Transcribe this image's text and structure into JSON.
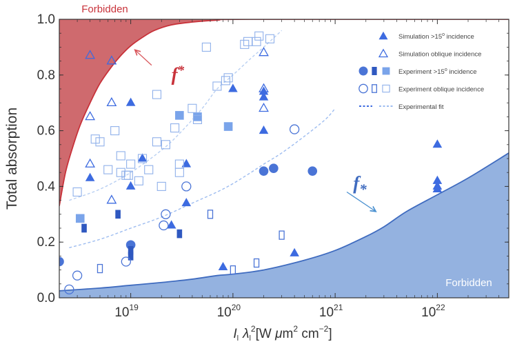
{
  "chart_data": {
    "type": "scatter",
    "title": "",
    "xlabel": "I_l λ_l^2 [W μm^2 cm^-2]",
    "xlabel_parts": {
      "I": "I",
      "sub1": "l",
      "lambda": "λ",
      "sub2": "l",
      "unit_pre": "[W ",
      "mu": "μ",
      "m": "m",
      "sup1": "2",
      "cm": " cm",
      "sup2": "−2",
      "close": "]"
    },
    "ylabel": "Total absorption",
    "xscale": "log",
    "xlim": [
      2e+18,
      5e+22
    ],
    "ylim": [
      0,
      1
    ],
    "x_ticks": [
      {
        "value": 1e+19,
        "base": "10",
        "exp": "19"
      },
      {
        "value": 1e+20,
        "base": "10",
        "exp": "20"
      },
      {
        "value": 1e+21,
        "base": "10",
        "exp": "21"
      },
      {
        "value": 1e+22,
        "base": "10",
        "exp": "22"
      }
    ],
    "y_ticks": [
      {
        "value": 0.0,
        "label": "0.0"
      },
      {
        "value": 0.2,
        "label": "0.2"
      },
      {
        "value": 0.4,
        "label": "0.4"
      },
      {
        "value": 0.6,
        "label": "0.6"
      },
      {
        "value": 0.8,
        "label": "0.8"
      },
      {
        "value": 1.0,
        "label": "1.0"
      }
    ],
    "regions": {
      "upper": {
        "label": "Forbidden",
        "color": "#cf6a6e",
        "edge_color": "#c8323a"
      },
      "lower": {
        "label": "Forbidden",
        "color": "#94b2e0",
        "edge_color": "#3f6bbf"
      }
    },
    "curves": {
      "f_upper": {
        "label": "f",
        "symbol": "*",
        "color": "#c8323a",
        "points": [
          [
            2e+18,
            0.33
          ],
          [
            2.3e+18,
            0.45
          ],
          [
            2.7e+18,
            0.54
          ],
          [
            3.2e+18,
            0.62
          ],
          [
            4e+18,
            0.7
          ],
          [
            5e+18,
            0.77
          ],
          [
            6.5e+18,
            0.83
          ],
          [
            8e+18,
            0.87
          ],
          [
            1e+19,
            0.905
          ],
          [
            1.3e+19,
            0.935
          ],
          [
            1.7e+19,
            0.96
          ],
          [
            2.5e+19,
            0.98
          ],
          [
            4e+19,
            0.99
          ],
          [
            7e+19,
            0.997
          ],
          [
            1.5e+20,
            1.0
          ],
          [
            5e+22,
            1.0
          ]
        ]
      },
      "f_lower": {
        "label": "f",
        "symbol": "*",
        "color": "#3f6bbf",
        "points": [
          [
            2e+18,
            0.025
          ],
          [
            5e+18,
            0.035
          ],
          [
            1e+19,
            0.045
          ],
          [
            2e+19,
            0.055
          ],
          [
            4e+19,
            0.067
          ],
          [
            7e+19,
            0.08
          ],
          [
            1e+20,
            0.085
          ],
          [
            2e+20,
            0.1
          ],
          [
            5e+20,
            0.135
          ],
          [
            1e+21,
            0.17
          ],
          [
            2e+21,
            0.22
          ],
          [
            3e+21,
            0.255
          ],
          [
            5e+21,
            0.31
          ],
          [
            1e+22,
            0.37
          ],
          [
            2e+22,
            0.43
          ],
          [
            5e+22,
            0.52
          ]
        ]
      },
      "fit_dark": {
        "points": [
          [
            2.5e+18,
            0.18
          ],
          [
            5e+18,
            0.21
          ],
          [
            1e+19,
            0.25
          ],
          [
            2e+19,
            0.29
          ],
          [
            4e+19,
            0.34
          ],
          [
            7e+19,
            0.38
          ],
          [
            1e+20,
            0.41
          ],
          [
            1.5e+20,
            0.45
          ],
          [
            2e+20,
            0.48
          ],
          [
            3e+20,
            0.52
          ],
          [
            5e+20,
            0.58
          ],
          [
            8e+20,
            0.64
          ],
          [
            1e+21,
            0.68
          ]
        ]
      },
      "fit_light": {
        "points": [
          [
            2.5e+18,
            0.35
          ],
          [
            5e+18,
            0.39
          ],
          [
            1e+19,
            0.45
          ],
          [
            2e+19,
            0.53
          ],
          [
            3e+19,
            0.59
          ],
          [
            5e+19,
            0.68
          ],
          [
            7e+19,
            0.75
          ],
          [
            1e+20,
            0.8
          ],
          [
            1.5e+20,
            0.86
          ],
          [
            2e+20,
            0.9
          ],
          [
            3e+20,
            0.96
          ]
        ]
      }
    },
    "annotations": {
      "f_upper_arrow": {
        "from": [
          1.6e+19,
          0.835
        ],
        "to": [
          1.1e+19,
          0.89
        ]
      },
      "f_lower_arrow": {
        "from": [
          1.3e+21,
          0.38
        ],
        "to": [
          2.5e+21,
          0.31
        ]
      },
      "f_upper_pos": [
        2.5e+19,
        0.78
      ],
      "f_lower_pos": [
        1.5e+21,
        0.39
      ]
    },
    "series": [
      {
        "name": "Simulation >15° incidence",
        "marker": "triangle",
        "filled": true,
        "color": "#3d6be0",
        "points": [
          [
            4e+18,
            0.43
          ],
          [
            1e+19,
            0.7
          ],
          [
            1e+19,
            0.4
          ],
          [
            1.3e+19,
            0.5
          ],
          [
            2.5e+19,
            0.26
          ],
          [
            3.5e+19,
            0.48
          ],
          [
            3.5e+19,
            0.34
          ],
          [
            1e+20,
            0.75
          ],
          [
            2e+20,
            0.74
          ],
          [
            2e+20,
            0.72
          ],
          [
            2e+20,
            0.6
          ],
          [
            8e+19,
            0.11
          ],
          [
            4e+20,
            0.16
          ],
          [
            1e+22,
            0.55
          ],
          [
            1e+22,
            0.42
          ],
          [
            1e+22,
            0.4
          ],
          [
            1e+22,
            0.39
          ]
        ]
      },
      {
        "name": "Simulation oblique incidence",
        "marker": "triangle",
        "filled": false,
        "color": "#3d6be0",
        "points": [
          [
            4e+18,
            0.87
          ],
          [
            6.5e+18,
            0.85
          ],
          [
            4e+18,
            0.65
          ],
          [
            4e+18,
            0.48
          ],
          [
            6.5e+18,
            0.7
          ],
          [
            6.5e+18,
            0.35
          ],
          [
            2e+20,
            0.88
          ],
          [
            2e+20,
            0.75
          ],
          [
            2e+20,
            0.68
          ]
        ]
      },
      {
        "name": "Experiment >15° incidence (circle)",
        "marker": "circle",
        "filled": true,
        "color": "#4a74d6",
        "points": [
          [
            2e+18,
            0.13
          ],
          [
            1e+19,
            0.19
          ],
          [
            2e+20,
            0.455
          ],
          [
            2.5e+20,
            0.465
          ],
          [
            6e+20,
            0.455
          ]
        ]
      },
      {
        "name": "Experiment >15° incidence (bar)",
        "marker": "bar",
        "filled": true,
        "color": "#2f58c0",
        "points": [
          [
            3.5e+18,
            0.25
          ],
          [
            7.5e+18,
            0.3
          ],
          [
            1e+19,
            0.15
          ],
          [
            1e+19,
            0.17
          ],
          [
            3e+19,
            0.23
          ]
        ]
      },
      {
        "name": "Experiment >15° incidence (square)",
        "marker": "square",
        "filled": true,
        "color": "#7aa4ea",
        "points": [
          [
            3.2e+18,
            0.285
          ],
          [
            3e+19,
            0.655
          ],
          [
            4.5e+19,
            0.65
          ],
          [
            9e+19,
            0.615
          ]
        ]
      },
      {
        "name": "Experiment oblique incidence (circle)",
        "marker": "circle",
        "filled": false,
        "color": "#4a74d6",
        "points": [
          [
            2.5e+18,
            0.03
          ],
          [
            3e+18,
            0.08
          ],
          [
            9e+18,
            0.13
          ],
          [
            2.1e+19,
            0.26
          ],
          [
            2.2e+19,
            0.3
          ],
          [
            3.5e+19,
            0.4
          ],
          [
            4e+20,
            0.605
          ]
        ]
      },
      {
        "name": "Experiment oblique incidence (bar)",
        "marker": "bar",
        "filled": false,
        "color": "#4a74d6",
        "points": [
          [
            5e+18,
            0.105
          ],
          [
            6e+19,
            0.3
          ],
          [
            1e+20,
            0.1
          ],
          [
            1.7e+20,
            0.125
          ],
          [
            3e+20,
            0.225
          ]
        ]
      },
      {
        "name": "Experiment oblique incidence (square)",
        "marker": "square",
        "filled": false,
        "color": "#8fb0ea",
        "points": [
          [
            3e+18,
            0.38
          ],
          [
            4.5e+18,
            0.57
          ],
          [
            5e+18,
            0.56
          ],
          [
            6e+18,
            0.46
          ],
          [
            7e+18,
            0.6
          ],
          [
            8e+18,
            0.45
          ],
          [
            8e+18,
            0.51
          ],
          [
            9e+18,
            0.44
          ],
          [
            9.5e+18,
            0.44
          ],
          [
            1e+19,
            0.48
          ],
          [
            1.2e+19,
            0.42
          ],
          [
            1.3e+19,
            0.5
          ],
          [
            1.5e+19,
            0.46
          ],
          [
            1.8e+19,
            0.73
          ],
          [
            1.8e+19,
            0.56
          ],
          [
            2e+19,
            0.4
          ],
          [
            2.2e+19,
            0.55
          ],
          [
            2.7e+19,
            0.61
          ],
          [
            3e+19,
            0.48
          ],
          [
            3e+19,
            0.45
          ],
          [
            4e+19,
            0.68
          ],
          [
            4.5e+19,
            0.64
          ],
          [
            5.5e+19,
            0.9
          ],
          [
            7e+19,
            0.76
          ],
          [
            8.5e+19,
            0.78
          ],
          [
            9e+19,
            0.79
          ],
          [
            1.3e+20,
            0.91
          ],
          [
            1.4e+20,
            0.92
          ],
          [
            1.7e+20,
            0.92
          ],
          [
            1.8e+20,
            0.94
          ],
          [
            2.3e+20,
            0.93
          ]
        ]
      }
    ],
    "legend": {
      "position": "top-right",
      "entries": [
        {
          "label": "Simulation  >15",
          "sup": "o",
          "suffix": " incidence",
          "type": "sim_filled"
        },
        {
          "label": "Simulation oblique incidence",
          "sup": "",
          "suffix": "",
          "type": "sim_open"
        },
        {
          "label": "Experiment  >15",
          "sup": "o",
          "suffix": " incidence",
          "type": "exp_filled"
        },
        {
          "label": "Experiment oblique incidence",
          "sup": "",
          "suffix": "",
          "type": "exp_open"
        },
        {
          "label": "Experimental fit",
          "sup": "",
          "suffix": "",
          "type": "fit"
        }
      ]
    }
  },
  "colors": {
    "sim": "#3d6be0",
    "exp_circle": "#4a74d6",
    "exp_bar": "#2f58c0",
    "exp_square_filled": "#7aa4ea",
    "exp_square_open": "#8fb0ea",
    "fit_dark": "#3d6be0",
    "fit_light": "#9dbcf0"
  }
}
